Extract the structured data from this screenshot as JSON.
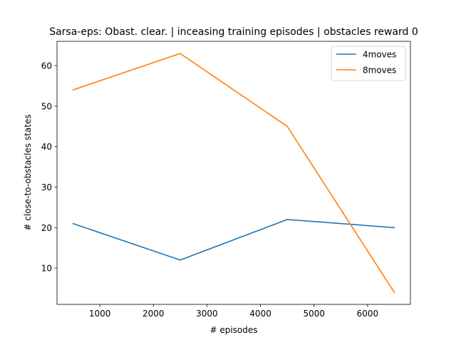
{
  "chart_data": {
    "type": "line",
    "title": "Sarsa-eps: Obast. clear. | inceasing training episodes | obstacles reward 0",
    "xlabel": "# episodes",
    "ylabel": "# close-to-obstacles states",
    "x": [
      500,
      2500,
      4500,
      6500
    ],
    "xlim": [
      200,
      6800
    ],
    "ylim": [
      1.05,
      66.0
    ],
    "xticks": [
      1000,
      2000,
      3000,
      4000,
      5000,
      6000
    ],
    "yticks": [
      10,
      20,
      30,
      40,
      50,
      60
    ],
    "grid": false,
    "legend_position": "upper right",
    "series": [
      {
        "name": "4moves",
        "color": "#1f77b4",
        "values": [
          21,
          12,
          22,
          20
        ]
      },
      {
        "name": "8moves",
        "color": "#ff7f0e",
        "values": [
          54,
          63,
          45,
          4
        ]
      }
    ]
  }
}
